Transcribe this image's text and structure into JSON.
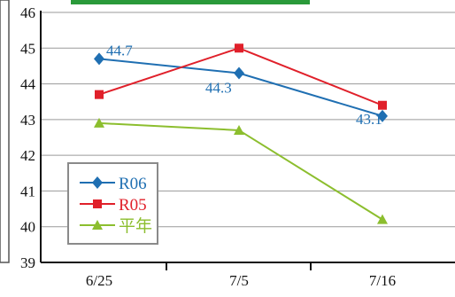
{
  "chart_data": {
    "type": "line",
    "title": "",
    "xlabel": "",
    "ylabel": "",
    "categories": [
      "6/25",
      "7/5",
      "7/16"
    ],
    "ylim": [
      39,
      46
    ],
    "yticks": [
      "39",
      "40",
      "41",
      "42",
      "43",
      "44",
      "45",
      "46"
    ],
    "grid": "horizontal",
    "legend_position": "bottom-left",
    "series": [
      {
        "name": "R06",
        "values": [
          44.7,
          44.3,
          43.1
        ],
        "color": "#1f6fb2",
        "marker": "diamond"
      },
      {
        "name": "R05",
        "values": [
          43.7,
          45.0,
          43.4
        ],
        "color": "#e0202a",
        "marker": "square"
      },
      {
        "name": "平年",
        "values": [
          42.9,
          42.7,
          40.2
        ],
        "color": "#8cbe2e",
        "marker": "triangle"
      }
    ],
    "annotations": [
      {
        "series": "R06",
        "index": 0,
        "text": "44.7",
        "placement": "right"
      },
      {
        "series": "R06",
        "index": 1,
        "text": "44.3",
        "placement": "below-left"
      },
      {
        "series": "R06",
        "index": 2,
        "text": "43.1",
        "placement": "left"
      }
    ]
  }
}
